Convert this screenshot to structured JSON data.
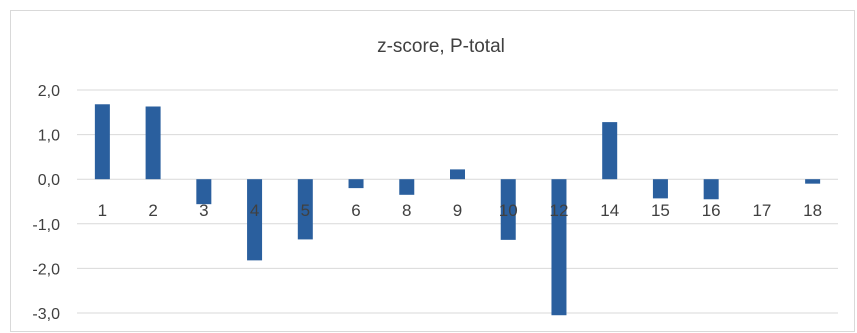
{
  "chart_data": {
    "type": "bar",
    "title": "z-score, P-total",
    "categories": [
      "1",
      "2",
      "3",
      "4",
      "5",
      "6",
      "8",
      "9",
      "10",
      "12",
      "14",
      "15",
      "16",
      "17",
      "18"
    ],
    "values": [
      1.68,
      1.63,
      -0.56,
      -1.82,
      -1.35,
      -0.2,
      -0.35,
      0.22,
      -1.36,
      -3.05,
      1.28,
      -0.43,
      -0.45,
      0.0,
      -0.1
    ],
    "yticks": [
      "2,0",
      "1,0",
      "0,0",
      "-1,0",
      "-2,0",
      "-3,0"
    ],
    "ylim": [
      -3.0,
      2.0
    ],
    "xlabel": "",
    "ylabel": "",
    "grid": "horizontal",
    "legend": "none",
    "bar_color": "#2a5f9e"
  }
}
